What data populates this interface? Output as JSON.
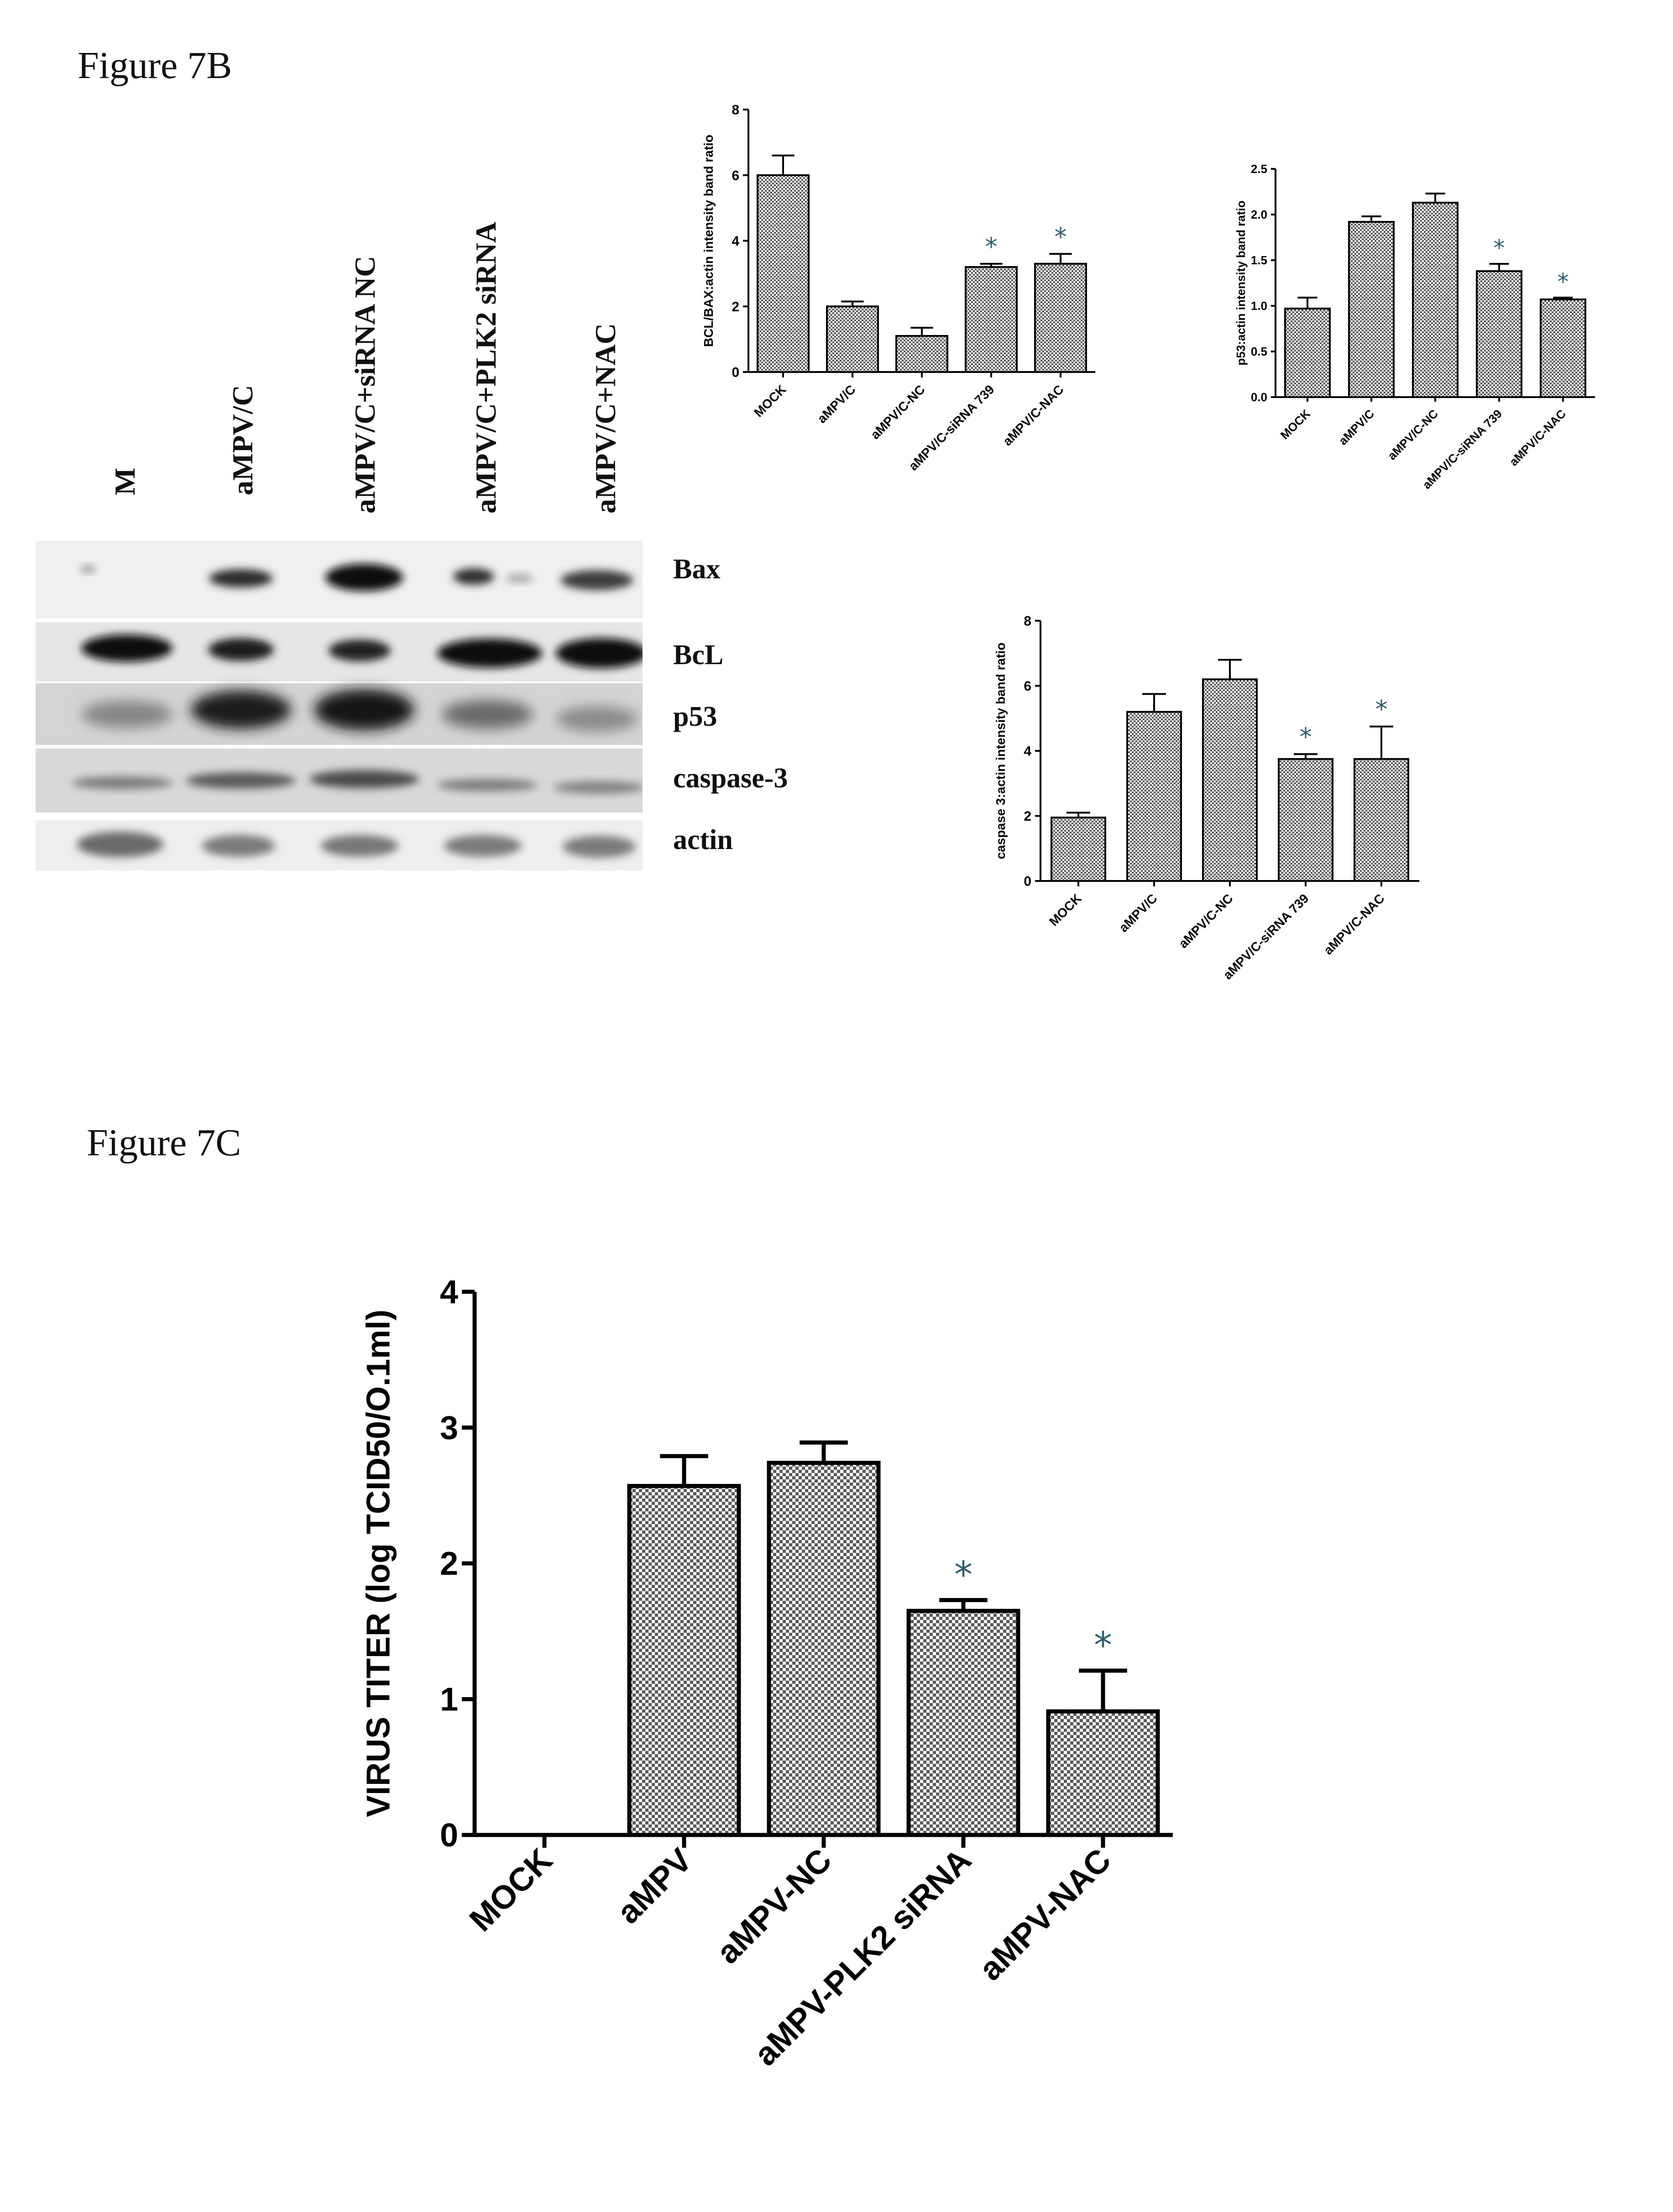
{
  "figure_labels": {
    "b": "Figure 7B",
    "c": "Figure 7C"
  },
  "blot": {
    "lanes": [
      "M",
      "aMPV/C",
      "aMPV/C+siRNA NC",
      "aMPV/C+PLK2 siRNA",
      "aMPV/C+NAC"
    ],
    "bands": [
      "Bax",
      "BcL",
      "p53",
      "caspase-3",
      "actin"
    ]
  },
  "colors": {
    "bar_fill": "#b8b8b8",
    "bar_pattern": "#5a5a5a",
    "axis": "#000000",
    "asterisk": "#2f5f6f"
  },
  "chart_data": [
    {
      "type": "bar",
      "ylabel": "BCL/BAX:actin intensity band ratio",
      "categories": [
        "MOCK",
        "aMPV/C",
        "aMPV/C-NC",
        "aMPV/C-siRNA 739",
        "aMPV/C-NAC"
      ],
      "values": [
        6.0,
        2.0,
        1.1,
        3.2,
        3.3
      ],
      "errors": [
        0.6,
        0.15,
        0.25,
        0.1,
        0.3
      ],
      "significance": [
        "",
        "",
        "",
        "*",
        "*"
      ],
      "ylim": [
        0,
        8
      ],
      "yticks": [
        "0",
        "2",
        "4",
        "6",
        "8"
      ]
    },
    {
      "type": "bar",
      "ylabel": "p53:actin intensity band ratio",
      "categories": [
        "MOCK",
        "aMPV/C",
        "aMPV/C-NC",
        "aMPV/C-siRNA 739",
        "aMPV/C-NAC"
      ],
      "values": [
        0.97,
        1.92,
        2.13,
        1.38,
        1.07
      ],
      "errors": [
        0.12,
        0.06,
        0.1,
        0.08,
        0.02
      ],
      "significance": [
        "",
        "",
        "",
        "*",
        "*"
      ],
      "ylim": [
        0,
        2.5
      ],
      "yticks": [
        "0.0",
        "0.5",
        "1.0",
        "1.5",
        "2.0",
        "2.5"
      ]
    },
    {
      "type": "bar",
      "ylabel": "caspase 3:actin intensity band ratio",
      "categories": [
        "MOCK",
        "aMPV/C",
        "aMPV/C-NC",
        "aMPV/C-siRNA 739",
        "aMPV/C-NAC"
      ],
      "values": [
        1.95,
        5.2,
        6.2,
        3.75,
        3.75
      ],
      "errors": [
        0.15,
        0.55,
        0.6,
        0.15,
        1.0
      ],
      "significance": [
        "",
        "",
        "",
        "*",
        "*"
      ],
      "ylim": [
        0,
        8
      ],
      "yticks": [
        "0",
        "2",
        "4",
        "6",
        "8"
      ]
    },
    {
      "type": "bar",
      "ylabel": "VIRUS TITER (log TCID50/O.1ml)",
      "categories": [
        "MOCK",
        "aMPV",
        "aMPV-NC",
        "aMPV-PLK2 siRNA",
        "aMPV-NAC"
      ],
      "values": [
        0,
        2.57,
        2.74,
        1.65,
        0.91
      ],
      "errors": [
        0,
        0.22,
        0.15,
        0.08,
        0.3
      ],
      "significance": [
        "",
        "",
        "",
        "*",
        "*"
      ],
      "ylim": [
        0,
        4
      ],
      "yticks": [
        "0",
        "1",
        "2",
        "3",
        "4"
      ]
    }
  ]
}
